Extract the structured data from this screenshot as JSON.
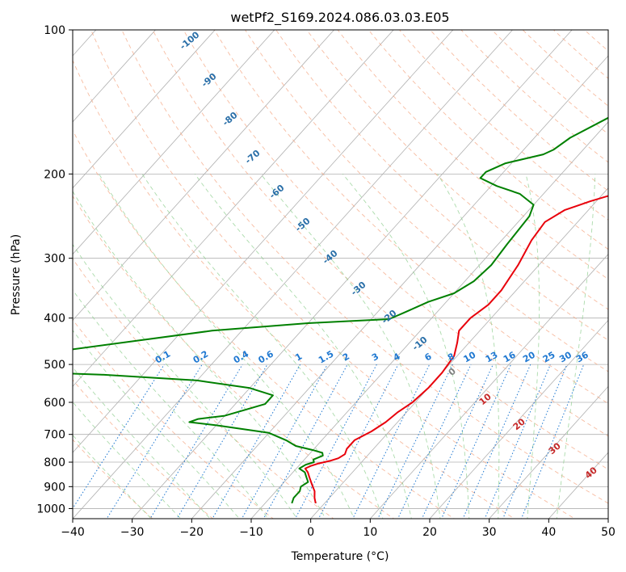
{
  "chart_data": {
    "type": "line",
    "subtype": "skew-t log-p",
    "title": "wetPf2_S169.2024.086.03.03.E05",
    "xlabel": "Temperature (°C)",
    "ylabel": "Pressure (hPa)",
    "xlim": [
      -40,
      50
    ],
    "ylim": [
      1050,
      100
    ],
    "y_scale": "log",
    "grid": true,
    "x_ticks": [
      -40,
      -30,
      -20,
      -10,
      0,
      10,
      20,
      30,
      40,
      50
    ],
    "y_ticks": [
      100,
      200,
      300,
      400,
      500,
      600,
      700,
      800,
      900,
      1000
    ],
    "series": [
      {
        "color": "#e8000b",
        "points": [
          [
            -1.5,
            975
          ],
          [
            -2.5,
            950
          ],
          [
            -3.5,
            920
          ],
          [
            -4.5,
            900
          ],
          [
            -5.5,
            880
          ],
          [
            -6.5,
            860
          ],
          [
            -7.5,
            840
          ],
          [
            -8.5,
            825
          ],
          [
            -8,
            815
          ],
          [
            -7,
            805
          ],
          [
            -5.5,
            795
          ],
          [
            -4.5,
            785
          ],
          [
            -4,
            770
          ],
          [
            -4.5,
            750
          ],
          [
            -4.5,
            720
          ],
          [
            -3,
            690
          ],
          [
            -2,
            660
          ],
          [
            -1.5,
            630
          ],
          [
            -0.5,
            600
          ],
          [
            0,
            560
          ],
          [
            0,
            520
          ],
          [
            -0.5,
            480
          ],
          [
            -2,
            450
          ],
          [
            -3.5,
            425
          ],
          [
            -3.5,
            400
          ],
          [
            -2.5,
            375
          ],
          [
            -2.5,
            350
          ],
          [
            -3.5,
            310
          ],
          [
            -5,
            275
          ],
          [
            -5.5,
            252
          ],
          [
            -4,
            238
          ],
          [
            -1,
            228
          ],
          [
            4,
            215
          ],
          [
            8,
            202
          ],
          [
            11,
            190
          ],
          [
            12,
            182
          ],
          [
            15,
            172
          ],
          [
            18,
            163
          ],
          [
            21,
            153
          ],
          [
            22,
            147
          ],
          [
            25,
            138
          ],
          [
            30,
            128
          ],
          [
            33,
            120
          ],
          [
            35,
            113
          ],
          [
            36,
            108
          ],
          [
            37,
            103
          ],
          [
            38,
            100
          ]
        ]
      },
      {
        "color": "#008000",
        "points": [
          [
            -5.5,
            975
          ],
          [
            -6,
            950
          ],
          [
            -6,
            920
          ],
          [
            -6.5,
            900
          ],
          [
            -6,
            880
          ],
          [
            -7,
            860
          ],
          [
            -8,
            840
          ],
          [
            -9.5,
            825
          ],
          [
            -9,
            810
          ],
          [
            -8,
            800
          ],
          [
            -8.5,
            790
          ],
          [
            -7.5,
            775
          ],
          [
            -8,
            765
          ],
          [
            -10,
            755
          ],
          [
            -13.5,
            740
          ],
          [
            -16,
            720
          ],
          [
            -20,
            695
          ],
          [
            -30,
            670
          ],
          [
            -35,
            660
          ],
          [
            -34,
            650
          ],
          [
            -30,
            640
          ],
          [
            -25,
            605
          ],
          [
            -25,
            580
          ],
          [
            -30,
            560
          ],
          [
            -40,
            540
          ],
          [
            -57,
            525
          ],
          [
            -87,
            510
          ],
          [
            -45,
            425
          ],
          [
            -30,
            410
          ],
          [
            -17,
            402
          ],
          [
            -15.5,
            390
          ],
          [
            -13,
            370
          ],
          [
            -10,
            355
          ],
          [
            -8.5,
            335
          ],
          [
            -8,
            310
          ],
          [
            -8.5,
            280
          ],
          [
            -9,
            245
          ],
          [
            -10,
            232
          ],
          [
            -14,
            220
          ],
          [
            -19,
            212
          ],
          [
            -23,
            204
          ],
          [
            -23,
            198
          ],
          [
            -21,
            190
          ],
          [
            -16,
            182
          ],
          [
            -15,
            178
          ],
          [
            -14,
            168
          ],
          [
            -10,
            150
          ],
          [
            -6,
            136
          ],
          [
            -2,
            125
          ],
          [
            2,
            115
          ],
          [
            6,
            106
          ],
          [
            9,
            100
          ]
        ]
      }
    ],
    "dry_adiabat_labels": [
      "-100",
      "-90",
      "-80",
      "-70",
      "-60",
      "-50",
      "-40",
      "-30",
      "-20",
      "-10",
      "0",
      "10",
      "20",
      "30",
      "40"
    ],
    "mixing_ratio_labels": [
      "0.1",
      "0.2",
      "0.4",
      "0.6",
      "1",
      "1.5",
      "2",
      "3",
      "4",
      "6",
      "8",
      "10",
      "13",
      "16",
      "20",
      "25",
      "30",
      "36"
    ],
    "mixing_ratio_values": [
      0.1,
      0.2,
      0.4,
      0.6,
      1,
      1.5,
      2,
      3,
      4,
      6,
      8,
      10,
      13,
      16,
      20,
      25,
      30,
      36
    ],
    "colors": {
      "temperature": "#e8000b",
      "dewpoint": "#008000",
      "isotherm": "#b0b0b0",
      "dry_adiabat": "#f4a582",
      "moist_adiabat": "#8fcf8f",
      "mixing_ratio": "#1f78d1",
      "label_blue": "#2a6fa8",
      "label_red": "#c62828",
      "label_grey": "#808080"
    }
  }
}
